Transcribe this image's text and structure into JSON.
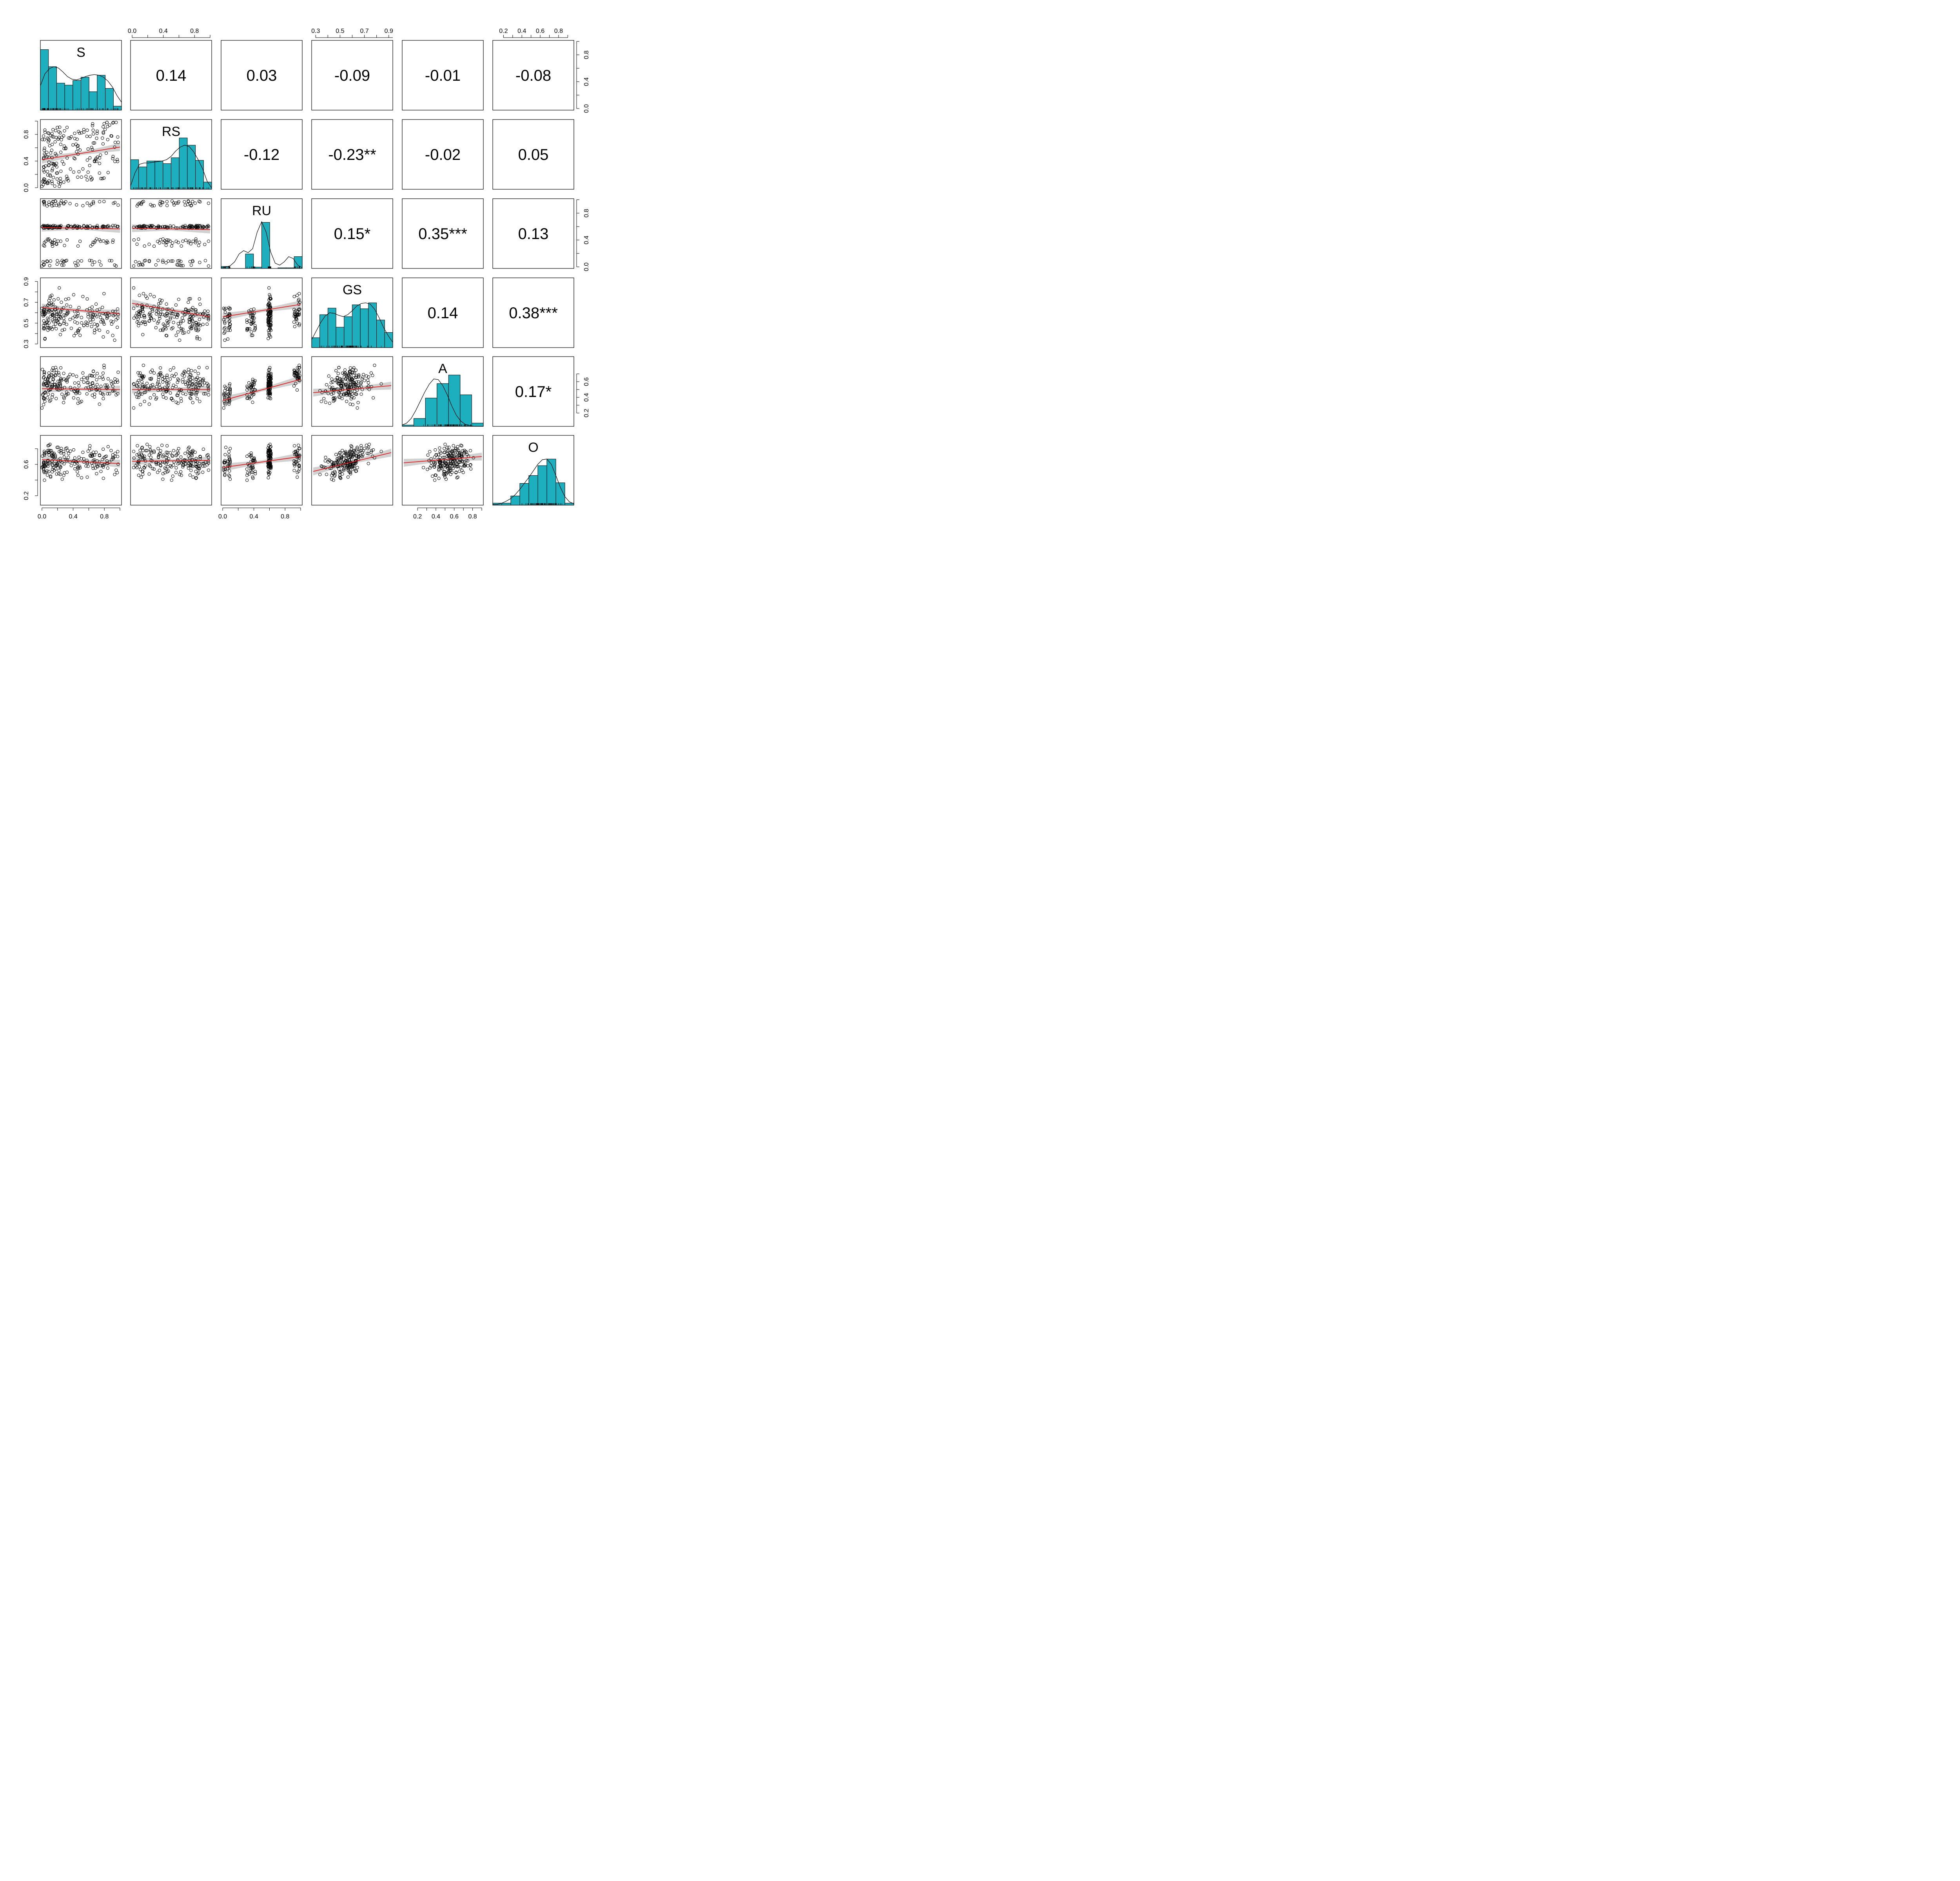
{
  "chart_data": {
    "type": "scatter",
    "variables": [
      "S",
      "RS",
      "RU",
      "GS",
      "A",
      "O"
    ],
    "correlations": [
      {
        "row": "S",
        "col": "RS",
        "text": "0.14"
      },
      {
        "row": "S",
        "col": "RU",
        "text": "0.03"
      },
      {
        "row": "S",
        "col": "GS",
        "text": "-0.09"
      },
      {
        "row": "S",
        "col": "A",
        "text": "-0.01"
      },
      {
        "row": "S",
        "col": "O",
        "text": "-0.08"
      },
      {
        "row": "RS",
        "col": "RU",
        "text": "-0.12"
      },
      {
        "row": "RS",
        "col": "GS",
        "text": "-0.23**"
      },
      {
        "row": "RS",
        "col": "A",
        "text": "-0.02"
      },
      {
        "row": "RS",
        "col": "O",
        "text": "0.05"
      },
      {
        "row": "RU",
        "col": "GS",
        "text": "0.15*"
      },
      {
        "row": "RU",
        "col": "A",
        "text": "0.35***"
      },
      {
        "row": "RU",
        "col": "O",
        "text": "0.13"
      },
      {
        "row": "GS",
        "col": "A",
        "text": "0.14"
      },
      {
        "row": "GS",
        "col": "O",
        "text": "0.38***"
      },
      {
        "row": "A",
        "col": "O",
        "text": "0.17*"
      }
    ],
    "ranges": {
      "S": [
        0,
        1
      ],
      "RS": [
        0,
        1
      ],
      "RU": [
        0,
        1
      ],
      "GS": [
        0.28,
        0.92
      ],
      "A": [
        0.05,
        0.9
      ],
      "O": [
        0.1,
        0.95
      ]
    },
    "ticks": {
      "S": [
        "0.0",
        "0.4",
        "0.8"
      ],
      "RS": [
        "0.0",
        "0.4",
        "0.8"
      ],
      "RU": [
        "0.0",
        "0.4",
        "0.8"
      ],
      "GS": [
        "0.3",
        "0.5",
        "0.7",
        "0.9"
      ],
      "A": [
        "0.2",
        "0.4",
        "0.6",
        "0.8"
      ],
      "O": [
        "0.2",
        "0.4",
        "0.6",
        "0.8"
      ]
    },
    "top_axis_ticks": {
      "RS": [
        "0.0",
        "0.4",
        "0.8"
      ],
      "GS": [
        "0.3",
        "0.5",
        "0.7",
        "0.9"
      ],
      "O": [
        "0.2",
        "0.4",
        "0.6",
        "0.8"
      ]
    },
    "bottom_axis_ticks": {
      "S": [
        "0.0",
        "0.4",
        "0.8"
      ],
      "RU": [
        "0.0",
        "0.4",
        "0.8"
      ],
      "A": [
        "0.2",
        "0.4",
        "0.6",
        "0.8"
      ]
    },
    "left_axis_ticks": {
      "RS": [
        "0.0",
        "0.4",
        "0.8"
      ],
      "GS": [
        "0.3",
        "0.5",
        "0.7",
        "0.9"
      ],
      "O": [
        "0.2",
        "0.6"
      ]
    },
    "right_axis_ticks": {
      "S": [
        "0.0",
        "0.4",
        "0.8"
      ],
      "RU": [
        "0.0",
        "0.4",
        "0.8"
      ],
      "A": [
        "0.2",
        "0.4",
        "0.6"
      ]
    },
    "hist_density_ticks": [
      "0.0",
      "0.4",
      "0.8"
    ],
    "histograms": {
      "S": [
        0.92,
        0.66,
        0.41,
        0.38,
        0.45,
        0.5,
        0.28,
        0.53,
        0.33,
        0.06
      ],
      "RS": [
        0.45,
        0.34,
        0.43,
        0.43,
        0.39,
        0.48,
        0.78,
        0.67,
        0.44,
        0.11
      ],
      "RU": [
        0.03,
        0,
        0,
        0.22,
        0.02,
        0.7,
        0,
        0.01,
        0.01,
        0.18
      ],
      "GS": [
        0.15,
        0.5,
        0.6,
        0.31,
        0.47,
        0.65,
        0.59,
        0.68,
        0.42,
        0.23
      ],
      "A": [
        0.02,
        0.12,
        0.43,
        0.65,
        0.78,
        0.48,
        0.05
      ],
      "O": [
        0.03,
        0.03,
        0.14,
        0.33,
        0.45,
        0.6,
        0.7,
        0.34,
        0.03
      ]
    },
    "density_curves": {
      "S": [
        0.37,
        0.55,
        0.63,
        0.66,
        0.64,
        0.58,
        0.51,
        0.47,
        0.46,
        0.48,
        0.51,
        0.53,
        0.54,
        0.53,
        0.5,
        0.44,
        0.35,
        0.22,
        0.12
      ],
      "RS": [
        0.05,
        0.25,
        0.38,
        0.4,
        0.4,
        0.41,
        0.42,
        0.43,
        0.45,
        0.5,
        0.58,
        0.64,
        0.67,
        0.65,
        0.57,
        0.45,
        0.31,
        0.12,
        0.02
      ],
      "RU": [
        0.01,
        0.02,
        0.04,
        0.1,
        0.22,
        0.27,
        0.24,
        0.3,
        0.55,
        0.71,
        0.55,
        0.25,
        0.08,
        0.05,
        0.1,
        0.18,
        0.15,
        0.05,
        0.01
      ],
      "GS": [
        0.12,
        0.25,
        0.38,
        0.48,
        0.53,
        0.52,
        0.49,
        0.47,
        0.5,
        0.56,
        0.63,
        0.67,
        0.68,
        0.66,
        0.58,
        0.45,
        0.3,
        0.18,
        0.08
      ],
      "A": [
        0.02,
        0.05,
        0.12,
        0.24,
        0.38,
        0.52,
        0.64,
        0.72,
        0.71,
        0.62,
        0.48,
        0.31,
        0.17,
        0.08,
        0.03,
        0.01,
        0.0,
        0.0,
        0.0
      ],
      "O": [
        0.01,
        0.01,
        0.03,
        0.06,
        0.1,
        0.16,
        0.24,
        0.33,
        0.42,
        0.52,
        0.62,
        0.69,
        0.7,
        0.62,
        0.45,
        0.27,
        0.13,
        0.05,
        0.02
      ]
    },
    "fit_lines": [
      {
        "row": "RS",
        "col": "S",
        "y_at_xmin": 0.42,
        "y_at_xmax": 0.61
      },
      {
        "row": "RU",
        "col": "S",
        "y_at_xmin": 0.59,
        "y_at_xmax": 0.57
      },
      {
        "row": "RU",
        "col": "RS",
        "y_at_xmin": 0.58,
        "y_at_xmax": 0.56
      },
      {
        "row": "GS",
        "col": "S",
        "y_at_xmin": 0.65,
        "y_at_xmax": 0.59
      },
      {
        "row": "GS",
        "col": "RS",
        "y_at_xmin": 0.69,
        "y_at_xmax": 0.56
      },
      {
        "row": "GS",
        "col": "RU",
        "y_at_xmin": 0.56,
        "y_at_xmax": 0.68
      },
      {
        "row": "A",
        "col": "S",
        "y_at_xmin": 0.51,
        "y_at_xmax": 0.5
      },
      {
        "row": "A",
        "col": "RS",
        "y_at_xmin": 0.5,
        "y_at_xmax": 0.5
      },
      {
        "row": "A",
        "col": "RU",
        "y_at_xmin": 0.36,
        "y_at_xmax": 0.63
      },
      {
        "row": "A",
        "col": "GS",
        "y_at_xmin": 0.46,
        "y_at_xmax": 0.55
      },
      {
        "row": "O",
        "col": "S",
        "y_at_xmin": 0.66,
        "y_at_xmax": 0.61
      },
      {
        "row": "O",
        "col": "RS",
        "y_at_xmin": 0.64,
        "y_at_xmax": 0.65
      },
      {
        "row": "O",
        "col": "RU",
        "y_at_xmin": 0.56,
        "y_at_xmax": 0.7
      },
      {
        "row": "O",
        "col": "GS",
        "y_at_xmin": 0.51,
        "y_at_xmax": 0.75
      },
      {
        "row": "O",
        "col": "A",
        "y_at_xmin": 0.62,
        "y_at_xmax": 0.7
      }
    ],
    "n_points": 200,
    "scatter_marker": "open circle",
    "grid": false,
    "colors": {
      "hist_fill": "#1EAFBF",
      "fit_line": "#E41A1C",
      "confidence_band": "#BEBEBE",
      "points": "#000000",
      "frame": "#000000"
    }
  }
}
